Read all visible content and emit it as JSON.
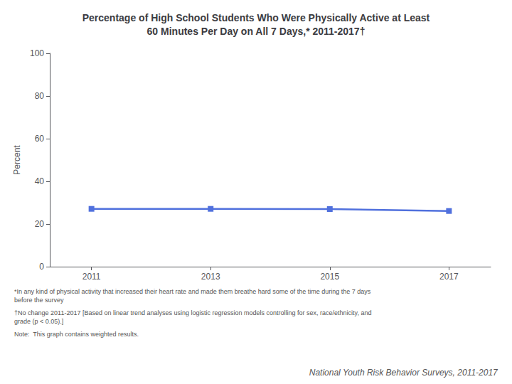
{
  "chart_data": {
    "type": "line",
    "title": "Percentage of High School Students Who Were Physically Active at Least\n60 Minutes Per Day on All 7 Days,* 2011-2017†",
    "ylabel": "Percent",
    "x": [
      2011,
      2013,
      2015,
      2017
    ],
    "values": [
      27.1,
      27.1,
      27.0,
      26.1
    ],
    "xlim": [
      2010.3,
      2017.7
    ],
    "xticks": [
      2011,
      2013,
      2015,
      2017
    ],
    "ylim": [
      0,
      100
    ],
    "yticks": [
      0,
      20,
      40,
      60,
      80,
      100
    ],
    "grid": false,
    "marker": "square",
    "annotations": [
      "*In any kind of physical activity that increased their heart rate and made them breathe hard some of the time during the 7 days\nbefore the survey",
      "†No change 2011-2017 [Based on linear trend analyses using logistic regression models controlling for sex, race/ethnicity, and\ngrade (p < 0.05).]",
      "Note:  This graph contains weighted results.",
      "National Youth Risk Behavior Surveys, 2011-2017"
    ]
  }
}
